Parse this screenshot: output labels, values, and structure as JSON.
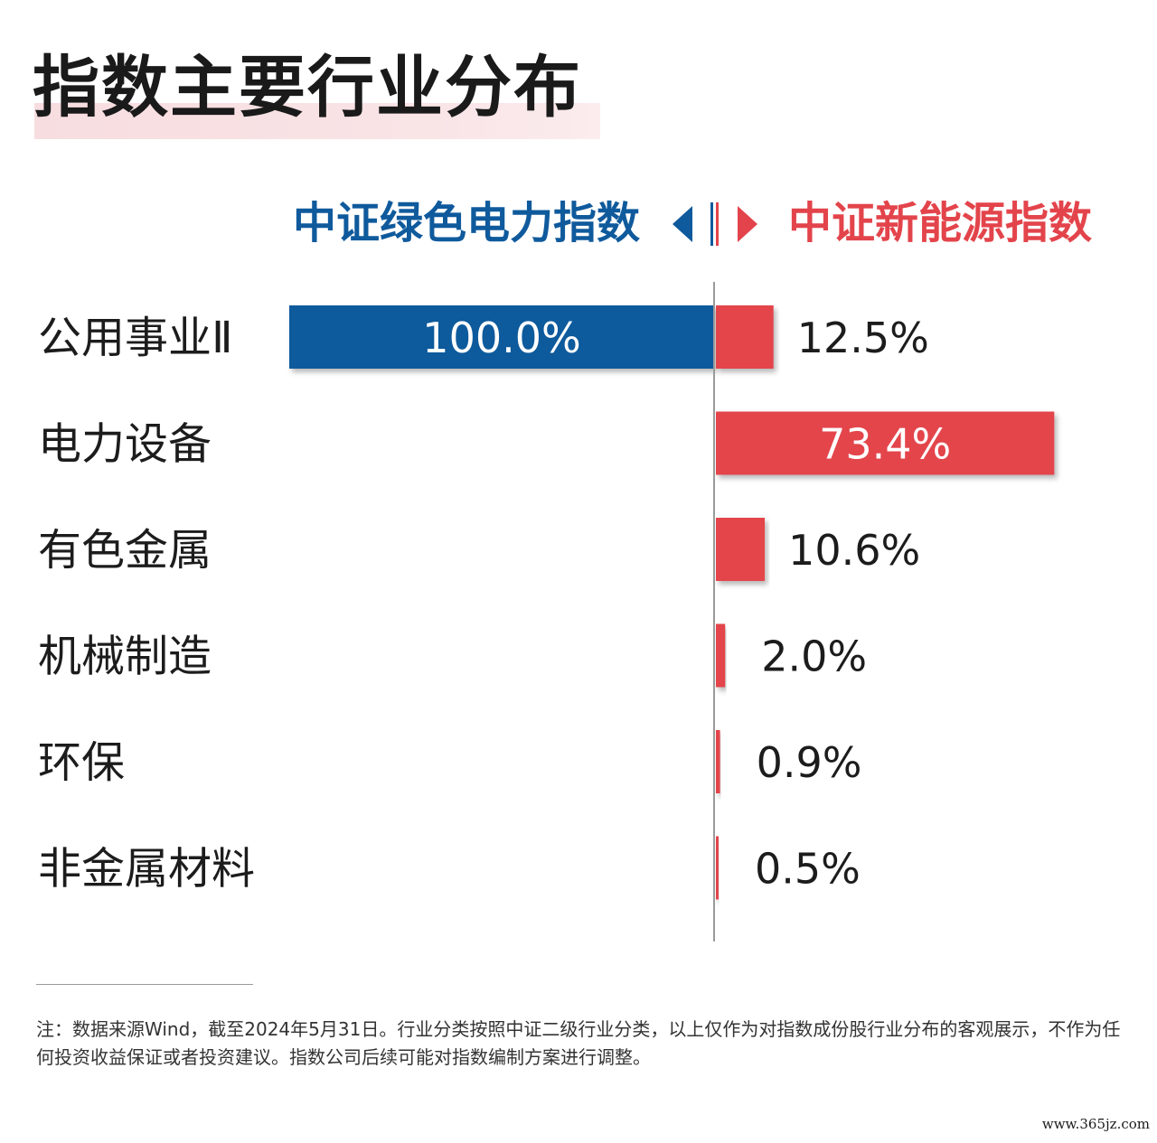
{
  "title": "指数主要行业分布",
  "legend": {
    "left": "中证绿色电力指数",
    "right": "中证新能源指数"
  },
  "colors": {
    "left_series": "#0f5a9c",
    "right_series": "#e3444b",
    "axis": "#9a9a9a",
    "title_highlight": "#f7dde0"
  },
  "chart_data": {
    "type": "bar",
    "orientation": "horizontal-diverging",
    "categories": [
      "公用事业Ⅱ",
      "电力设备",
      "有色金属",
      "机械制造",
      "环保",
      "非金属材料"
    ],
    "series": [
      {
        "name": "中证绿色电力指数",
        "side": "left",
        "values": [
          100.0,
          0,
          0,
          0,
          0,
          0
        ],
        "labels": [
          "100.0%",
          "",
          "",
          "",
          "",
          ""
        ]
      },
      {
        "name": "中证新能源指数",
        "side": "right",
        "values": [
          12.5,
          73.4,
          10.6,
          2.0,
          0.9,
          0.5
        ],
        "labels": [
          "12.5%",
          "73.4%",
          "10.6%",
          "2.0%",
          "0.9%",
          "0.5%"
        ]
      }
    ],
    "unit": "%"
  },
  "note": "注：数据来源Wind，截至2024年5月31日。行业分类按照中证二级行业分类，以上仅作为对指数成份股行业分布的客观展示，不作为任何投资收益保证或者投资建议。指数公司后续可能对指数编制方案进行调整。",
  "watermark": "www.365jz.com"
}
